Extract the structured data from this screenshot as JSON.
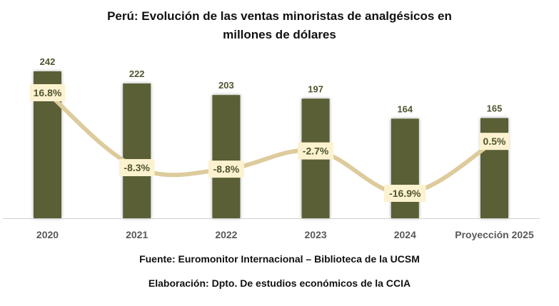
{
  "chart_data": {
    "type": "bar",
    "title_line1": "Perú: Evolución de las ventas minoristas de analgésicos en",
    "title_line2": "millones de dólares",
    "categories": [
      "2020",
      "2021",
      "2022",
      "2023",
      "2024",
      "Proyección 2025"
    ],
    "series": [
      {
        "name": "Ventas (millones de dólares)",
        "type": "bar",
        "values": [
          242,
          222,
          203,
          197,
          164,
          165
        ],
        "color": "#5a5f36"
      },
      {
        "name": "Variación %",
        "type": "line",
        "values": [
          16.8,
          -8.3,
          -8.8,
          -2.7,
          -16.9,
          0.5
        ],
        "labels": [
          "16.8%",
          "-8.3%",
          "-8.8%",
          "-2.7%",
          "-16.9%",
          "0.5%"
        ],
        "color": "#ddcb9c",
        "label_bg": "#fdf2d0"
      }
    ],
    "xlabel": "",
    "ylabel": "",
    "ylim": [
      0,
      242
    ],
    "grid": false,
    "legend": "none"
  },
  "footer": {
    "source": "Fuente: Euromonitor Internacional – Biblioteca de la UCSM",
    "elaboration": "Elaboración: Dpto. De estudios económicos de la CCIA"
  }
}
